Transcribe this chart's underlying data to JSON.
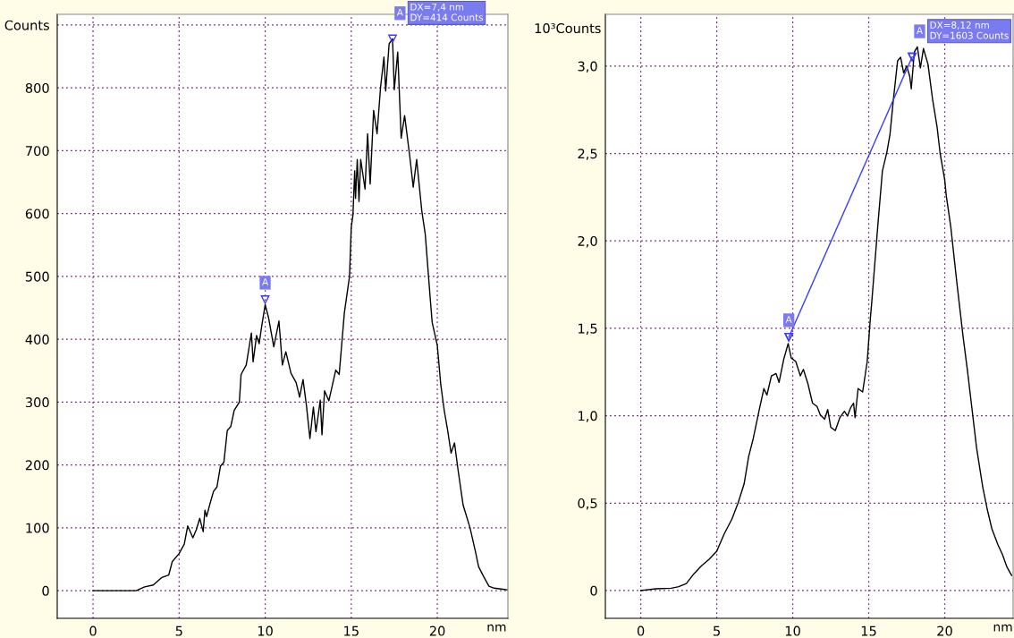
{
  "chart_data": [
    {
      "type": "line",
      "xlabel": "nm",
      "xlim": [
        -2.08,
        24.1
      ],
      "ylim": [
        -44,
        917
      ],
      "xticks": [
        0,
        5,
        10,
        15,
        20
      ],
      "yticks": [
        0,
        100,
        200,
        300,
        400,
        500,
        600,
        700,
        800,
        {
          "value": 900,
          "label": "Counts"
        }
      ],
      "grid": true,
      "line_style": "solid",
      "series": [
        {
          "color": "#000000",
          "x": [
            0,
            2.5,
            3,
            3.5,
            4,
            4.4,
            4.6,
            5,
            5.3,
            5.5,
            5.8,
            6.0,
            6.2,
            6.4,
            6.5,
            6.6,
            6.8,
            7.0,
            7.2,
            7.4,
            7.6,
            7.8,
            8.0,
            8.2,
            8.5,
            8.6,
            8.9,
            9.2,
            9.3,
            9.5,
            9.65,
            9.8,
            10.0,
            10.2,
            10.5,
            10.8,
            11.0,
            11.2,
            11.5,
            11.8,
            12.0,
            12.2,
            12.4,
            12.6,
            12.8,
            12.95,
            13.2,
            13.3,
            13.45,
            13.7,
            14.1,
            14.3,
            14.6,
            14.9,
            15.0,
            15.1,
            15.2,
            15.25,
            15.35,
            15.45,
            15.55,
            15.8,
            15.95,
            16.1,
            16.3,
            16.5,
            16.7,
            16.9,
            17.0,
            17.2,
            17.4,
            17.5,
            17.7,
            17.9,
            18.1,
            18.4,
            18.6,
            18.8,
            19.1,
            19.3,
            19.6,
            19.7,
            20.0,
            20.2,
            20.4,
            20.6,
            20.8,
            21.0,
            21.2,
            21.5,
            21.9,
            22.2,
            22.4,
            22.7,
            23.0,
            23.3,
            23.9,
            24.1
          ],
          "values": [
            0,
            0,
            6,
            9,
            21,
            25,
            46,
            59,
            74,
            103,
            84,
            97,
            115,
            94,
            128,
            118,
            139,
            158,
            165,
            198,
            204,
            255,
            261,
            287,
            300,
            344,
            359,
            410,
            364,
            406,
            393,
            421,
            455,
            434,
            388,
            429,
            359,
            380,
            346,
            331,
            308,
            336,
            294,
            242,
            292,
            253,
            303,
            248,
            318,
            302,
            351,
            344,
            442,
            500,
            578,
            598,
            668,
            624,
            686,
            619,
            686,
            639,
            727,
            647,
            764,
            727,
            800,
            849,
            795,
            870,
            878,
            797,
            857,
            720,
            756,
            691,
            642,
            686,
            604,
            567,
            461,
            427,
            390,
            328,
            287,
            255,
            219,
            235,
            193,
            136,
            100,
            64,
            38,
            22,
            7,
            4,
            2,
            1
          ]
        }
      ],
      "annotations": [
        {
          "text": "A",
          "x": 10,
          "y": 463
        },
        {
          "text": "A",
          "x": 17.4,
          "y": 878
        },
        {
          "text": "DX=7,4 nm\nDY=414 Counts",
          "x": 17.4,
          "y": 878
        }
      ]
    },
    {
      "type": "line",
      "xlabel": "nm",
      "ylabel": "10³Counts",
      "xlim": [
        -2.33,
        24.5
      ],
      "ylim": [
        -0.159,
        3.296
      ],
      "xticks": [
        0,
        5,
        10,
        15,
        20
      ],
      "yticks": [
        0,
        {
          "value": 0.5,
          "label": "0,5"
        },
        {
          "value": 1.0,
          "label": "1,0"
        },
        {
          "value": 1.5,
          "label": "1,5"
        },
        {
          "value": 2.0,
          "label": "2,0"
        },
        {
          "value": 2.5,
          "label": "2,5"
        },
        {
          "value": 3.0,
          "label": "3,0"
        }
      ],
      "grid": true,
      "line_style": "solid",
      "series": [
        {
          "color": "#000000",
          "x": [
            0,
            1,
            2,
            2.5,
            3,
            3.5,
            4,
            4.5,
            5,
            5.5,
            6,
            6.4,
            6.8,
            7.1,
            7.4,
            7.8,
            8.1,
            8.3,
            8.6,
            8.9,
            9.1,
            9.4,
            9.7,
            9.9,
            10.2,
            10.5,
            10.7,
            11.0,
            11.3,
            11.6,
            11.8,
            12.1,
            12.3,
            12.5,
            12.8,
            13.1,
            13.4,
            13.6,
            13.8,
            14.0,
            14.1,
            14.3,
            14.6,
            14.9,
            15.1,
            15.2,
            15.6,
            15.9,
            16.2,
            16.4,
            16.6,
            16.9,
            17.1,
            17.3,
            17.5,
            17.7,
            17.8,
            18.0,
            18.2,
            18.4,
            18.6,
            18.9,
            19.2,
            19.5,
            19.7,
            20.0,
            20.1,
            20.4,
            20.8,
            21.0,
            21.2,
            21.5,
            21.8,
            22.1,
            22.5,
            22.8,
            23.1,
            23.5,
            23.8,
            24.1,
            24.4
          ],
          "values": [
            0,
            0.01,
            0.013,
            0.022,
            0.04,
            0.096,
            0.142,
            0.179,
            0.225,
            0.326,
            0.409,
            0.5,
            0.61,
            0.767,
            0.869,
            1.035,
            1.155,
            1.118,
            1.228,
            1.241,
            1.191,
            1.32,
            1.413,
            1.33,
            1.31,
            1.228,
            1.265,
            1.182,
            1.072,
            1.053,
            1.007,
            0.98,
            1.035,
            0.934,
            0.915,
            0.989,
            1.025,
            0.998,
            1.044,
            1.072,
            0.989,
            1.155,
            1.136,
            1.31,
            1.55,
            1.65,
            2.09,
            2.4,
            2.51,
            2.61,
            2.79,
            3.03,
            3.05,
            2.96,
            3.0,
            2.94,
            2.87,
            3.08,
            3.11,
            2.99,
            3.1,
            3.01,
            2.81,
            2.65,
            2.5,
            2.35,
            2.26,
            2.08,
            1.76,
            1.61,
            1.458,
            1.256,
            1.035,
            0.814,
            0.593,
            0.464,
            0.354,
            0.262,
            0.206,
            0.133,
            0.087
          ]
        },
        {
          "color": "#3b3bff",
          "marker": "triangle",
          "x": [
            9.74,
            17.86
          ],
          "values": [
            1.449,
            3.052
          ]
        }
      ],
      "annotations": [
        {
          "text": "A",
          "x": 9.74,
          "y": 1.449
        },
        {
          "text": "A",
          "x": 17.86,
          "y": 3.052
        },
        {
          "text": "DX=8,12 nm\nDY=1603 Counts",
          "x": 17.86,
          "y": 3.052
        }
      ]
    }
  ]
}
